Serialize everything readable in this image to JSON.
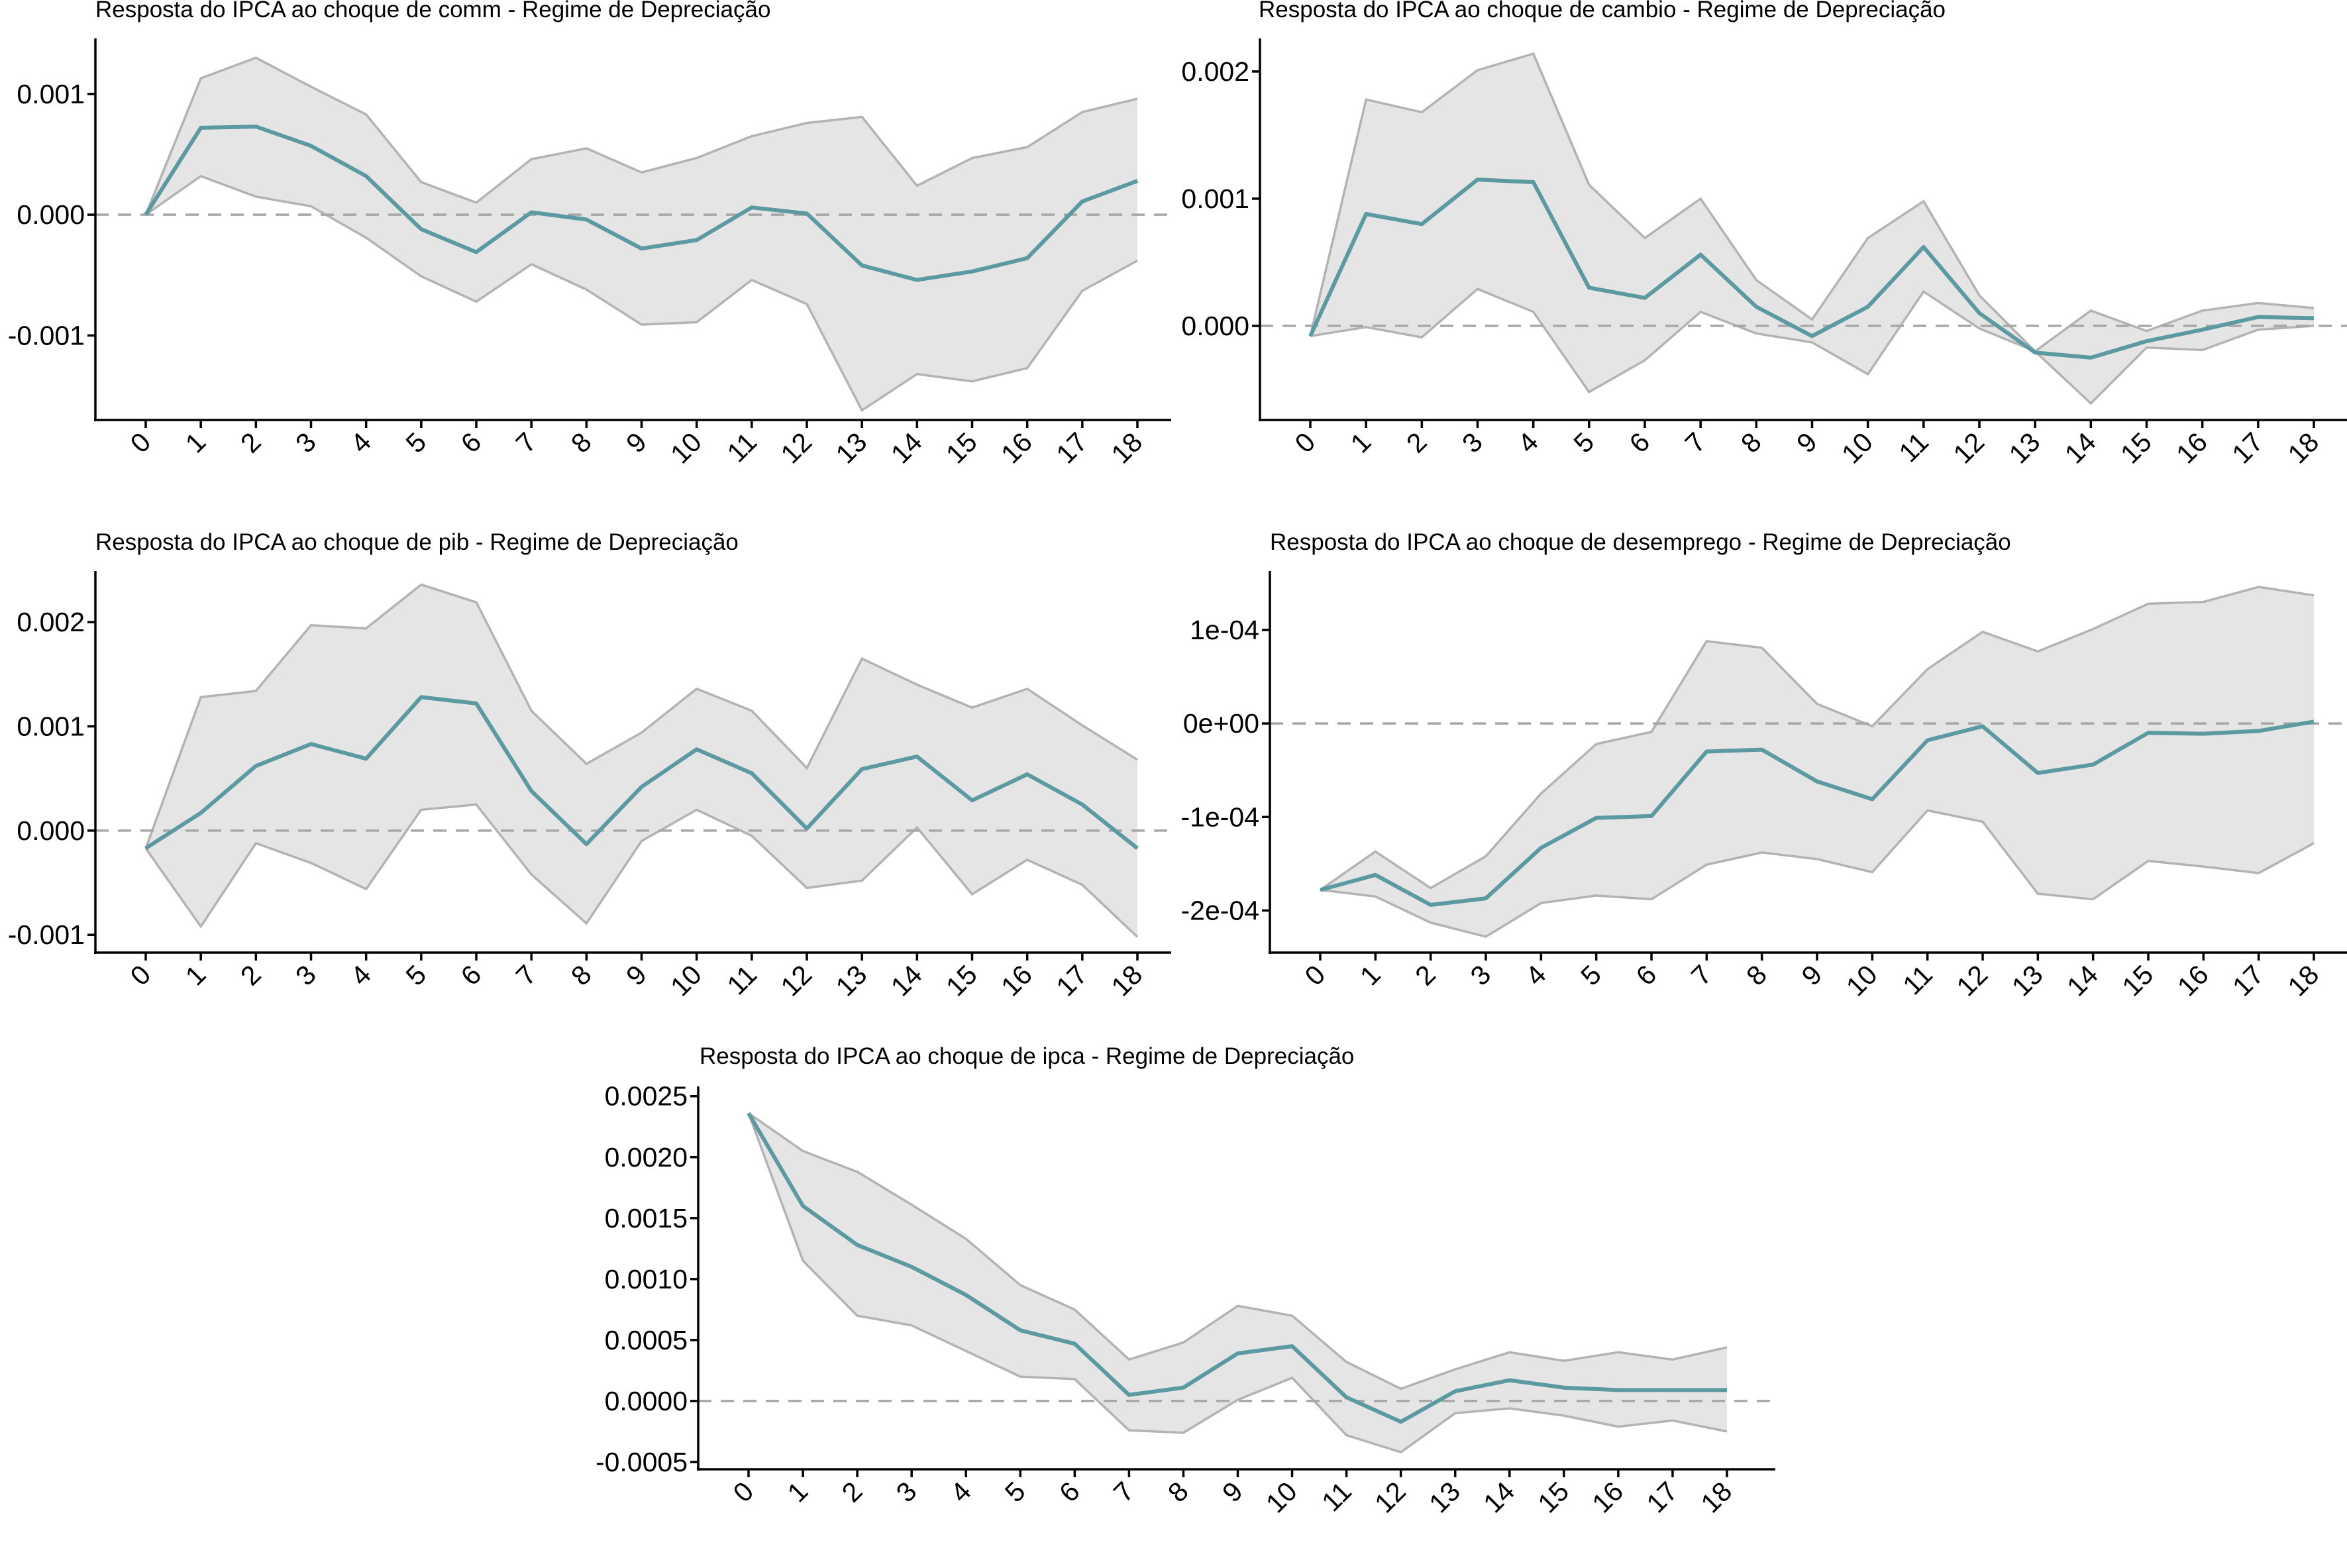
{
  "chart_data": [
    {
      "type": "line",
      "title": "Resposta do IPCA ao choque de comm -  Regime de Depreciação",
      "x": [
        0,
        1,
        2,
        3,
        4,
        5,
        6,
        7,
        8,
        9,
        10,
        11,
        12,
        13,
        14,
        15,
        16,
        17,
        18
      ],
      "series": [
        {
          "name": "response",
          "values": [
            0.0,
            0.00072,
            0.00073,
            0.00057,
            0.00032,
            -0.00012,
            -0.00031,
            2e-05,
            -4e-05,
            -0.00028,
            -0.00021,
            6e-05,
            1e-05,
            -0.00042,
            -0.00054,
            -0.00047,
            -0.00036,
            0.00011,
            0.00028
          ]
        },
        {
          "name": "lower",
          "values": [
            0.0,
            0.00032,
            0.00015,
            7e-05,
            -0.00019,
            -0.00051,
            -0.00072,
            -0.00041,
            -0.00062,
            -0.00091,
            -0.00089,
            -0.00054,
            -0.00074,
            -0.00162,
            -0.00132,
            -0.00138,
            -0.00127,
            -0.00063,
            -0.00038
          ]
        },
        {
          "name": "upper",
          "values": [
            0.0,
            0.00113,
            0.0013,
            0.00106,
            0.00083,
            0.00027,
            0.0001,
            0.00046,
            0.00055,
            0.00035,
            0.00047,
            0.00065,
            0.00076,
            0.00081,
            0.00024,
            0.00047,
            0.00056,
            0.00085,
            0.00096
          ]
        }
      ],
      "yticks": [
        -0.001,
        0.0,
        0.001
      ],
      "ytick_labels": [
        "-0.001",
        "0.000",
        "0.001"
      ],
      "ylim": [
        -0.0017,
        0.00146
      ],
      "colors": {
        "line": "#5b9aa0",
        "band": "#e5e5e5",
        "band_edge": "#b3b3b3",
        "zero": "#a6a6a6"
      }
    },
    {
      "type": "line",
      "title": "Resposta do IPCA ao choque de cambio -  Regime de Depreciação",
      "x": [
        0,
        1,
        2,
        3,
        4,
        5,
        6,
        7,
        8,
        9,
        10,
        11,
        12,
        13,
        14,
        15,
        16,
        17,
        18
      ],
      "series": [
        {
          "name": "response",
          "values": [
            -8e-05,
            0.00088,
            0.0008,
            0.00115,
            0.00113,
            0.0003,
            0.00022,
            0.00056,
            0.00015,
            -8e-05,
            0.00015,
            0.00062,
            0.0001,
            -0.00021,
            -0.00025,
            -0.00012,
            -3e-05,
            7e-05,
            6e-05
          ]
        },
        {
          "name": "lower",
          "values": [
            -8e-05,
            -1e-05,
            -9e-05,
            0.00029,
            0.00011,
            -0.00052,
            -0.00027,
            0.00011,
            -6e-05,
            -0.00013,
            -0.00038,
            0.00027,
            -2e-05,
            -0.0002,
            -0.00061,
            -0.00017,
            -0.00019,
            -3e-05,
            0.0
          ]
        },
        {
          "name": "upper",
          "values": [
            -8e-05,
            0.00178,
            0.00168,
            0.00201,
            0.00214,
            0.00111,
            0.00069,
            0.001,
            0.00036,
            5e-05,
            0.00069,
            0.00098,
            0.00024,
            -0.0002,
            0.00012,
            -4e-05,
            0.00012,
            0.00018,
            0.00014
          ]
        }
      ],
      "yticks": [
        0.0,
        0.001,
        0.002
      ],
      "ytick_labels": [
        "0.000",
        "0.001",
        "0.002"
      ],
      "ylim": [
        -0.00074,
        0.00226
      ],
      "colors": {
        "line": "#5b9aa0",
        "band": "#e5e5e5",
        "band_edge": "#b3b3b3",
        "zero": "#a6a6a6"
      }
    },
    {
      "type": "line",
      "title": "Resposta do IPCA ao choque de pib -  Regime de Depreciação",
      "x": [
        0,
        1,
        2,
        3,
        4,
        5,
        6,
        7,
        8,
        9,
        10,
        11,
        12,
        13,
        14,
        15,
        16,
        17,
        18
      ],
      "series": [
        {
          "name": "response",
          "values": [
            -0.00017,
            0.00017,
            0.00062,
            0.00083,
            0.00069,
            0.00128,
            0.00122,
            0.00038,
            -0.00013,
            0.00042,
            0.00078,
            0.00055,
            2e-05,
            0.00059,
            0.00071,
            0.00029,
            0.00054,
            0.00025,
            -0.00017
          ]
        },
        {
          "name": "lower",
          "values": [
            -0.00017,
            -0.00092,
            -0.00012,
            -0.00031,
            -0.00056,
            0.0002,
            0.00025,
            -0.00042,
            -0.00089,
            -0.0001,
            0.0002,
            -5e-05,
            -0.00055,
            -0.00048,
            3e-05,
            -0.00061,
            -0.00028,
            -0.00052,
            -0.00102
          ]
        },
        {
          "name": "upper",
          "values": [
            -0.00017,
            0.00128,
            0.00134,
            0.00197,
            0.00194,
            0.00236,
            0.00219,
            0.00115,
            0.00064,
            0.00094,
            0.00136,
            0.00115,
            0.0006,
            0.00165,
            0.0014,
            0.00118,
            0.00136,
            0.00101,
            0.00068
          ]
        }
      ],
      "yticks": [
        -0.001,
        0.0,
        0.001,
        0.002
      ],
      "ytick_labels": [
        "-0.001",
        "0.000",
        "0.001",
        "0.002"
      ],
      "ylim": [
        -0.00117,
        0.00249
      ],
      "colors": {
        "line": "#5b9aa0",
        "band": "#e5e5e5",
        "band_edge": "#b3b3b3",
        "zero": "#a6a6a6"
      }
    },
    {
      "type": "line",
      "title": "Resposta do IPCA ao choque de desemprego -  Regime de Depreciação",
      "x": [
        0,
        1,
        2,
        3,
        4,
        5,
        6,
        7,
        8,
        9,
        10,
        11,
        12,
        13,
        14,
        15,
        16,
        17,
        18
      ],
      "series": [
        {
          "name": "response",
          "values": [
            -0.000178,
            -0.000162,
            -0.000194,
            -0.000187,
            -0.000133,
            -0.000101,
            -9.9e-05,
            -3e-05,
            -2.8e-05,
            -6.2e-05,
            -8.1e-05,
            -1.8e-05,
            -3e-06,
            -5.3e-05,
            -4.4e-05,
            -1e-05,
            -1.1e-05,
            -8e-06,
            2e-06
          ]
        },
        {
          "name": "lower",
          "values": [
            -0.000178,
            -0.000185,
            -0.000213,
            -0.000228,
            -0.000192,
            -0.000184,
            -0.000188,
            -0.000151,
            -0.000138,
            -0.000145,
            -0.000159,
            -9.3e-05,
            -0.000105,
            -0.000182,
            -0.000188,
            -0.000147,
            -0.000153,
            -0.00016,
            -0.000128
          ]
        },
        {
          "name": "upper",
          "values": [
            -0.000178,
            -0.000137,
            -0.000176,
            -0.000142,
            -7.5e-05,
            -2.2e-05,
            -9e-06,
            8.8e-05,
            8.1e-05,
            2.1e-05,
            -3e-06,
            5.8e-05,
            9.8e-05,
            7.7e-05,
            0.000101,
            0.000128,
            0.00013,
            0.000146,
            0.000137
          ]
        }
      ],
      "yticks": [
        -0.0002,
        -0.0001,
        0.0,
        0.0001
      ],
      "ytick_labels": [
        "-2e-04",
        "-1e-04",
        "0e+00",
        "1e-04"
      ],
      "ylim": [
        -0.000245,
        0.000163
      ],
      "colors": {
        "line": "#5b9aa0",
        "band": "#e5e5e5",
        "band_edge": "#b3b3b3",
        "zero": "#a6a6a6"
      }
    },
    {
      "type": "line",
      "title": "Resposta do IPCA ao choque de ipca -  Regime de Depreciação",
      "x": [
        0,
        1,
        2,
        3,
        4,
        5,
        6,
        7,
        8,
        9,
        10,
        11,
        12,
        13,
        14,
        15,
        16,
        17,
        18
      ],
      "series": [
        {
          "name": "response",
          "values": [
            0.00236,
            0.0016,
            0.00128,
            0.0011,
            0.00087,
            0.00058,
            0.00047,
            5e-05,
            0.00011,
            0.00039,
            0.00045,
            3e-05,
            -0.00017,
            8e-05,
            0.00017,
            0.00011,
            9e-05,
            9e-05,
            9e-05
          ]
        },
        {
          "name": "lower",
          "values": [
            0.00236,
            0.00115,
            0.0007,
            0.00062,
            0.00041,
            0.0002,
            0.00018,
            -0.00024,
            -0.00026,
            1e-05,
            0.00019,
            -0.00028,
            -0.00042,
            -0.0001,
            -6e-05,
            -0.00012,
            -0.00021,
            -0.00016,
            -0.00025
          ]
        },
        {
          "name": "upper",
          "values": [
            0.00236,
            0.00205,
            0.00188,
            0.00161,
            0.00133,
            0.00095,
            0.00075,
            0.00034,
            0.00048,
            0.00078,
            0.0007,
            0.00032,
            0.0001,
            0.00026,
            0.0004,
            0.00033,
            0.0004,
            0.00034,
            0.00044
          ]
        }
      ],
      "yticks": [
        -0.0005,
        0.0,
        0.0005,
        0.001,
        0.0015,
        0.002,
        0.0025
      ],
      "ytick_labels": [
        "-0.0005",
        "0.0000",
        "0.0005",
        "0.0010",
        "0.0015",
        "0.0020",
        "0.0025"
      ],
      "ylim": [
        -0.00056,
        0.00258
      ],
      "colors": {
        "line": "#5b9aa0",
        "band": "#e5e5e5",
        "band_edge": "#b3b3b3",
        "zero": "#a6a6a6"
      }
    }
  ]
}
